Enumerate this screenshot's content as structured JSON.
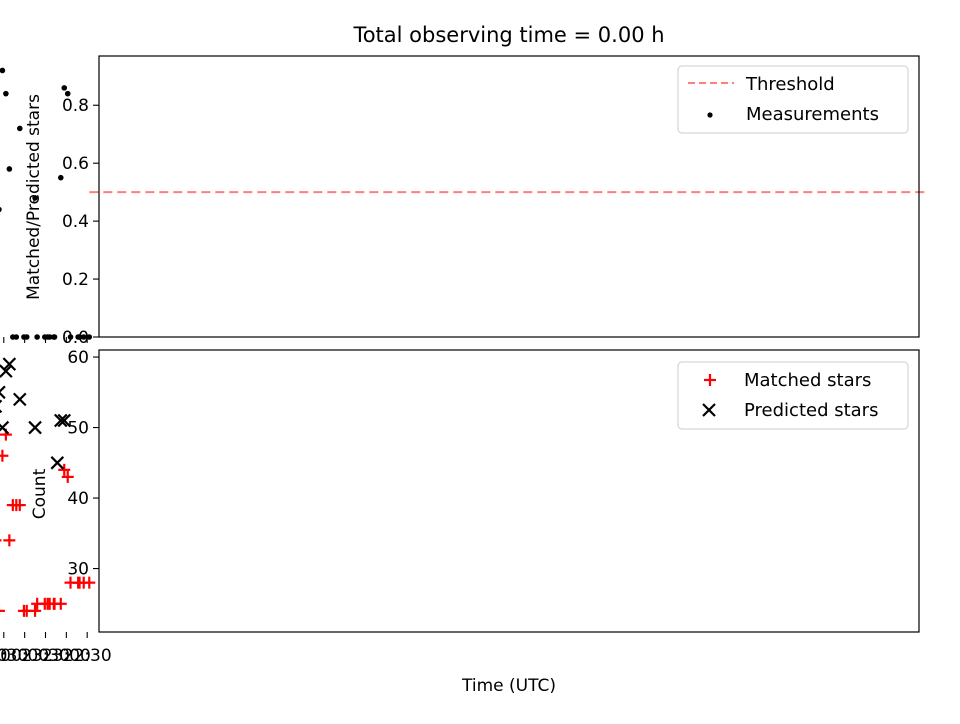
{
  "chart_data": [
    {
      "type": "scatter",
      "title": "Total observing time = 0.00 h",
      "ylabel": "Matched/Predicted stars",
      "ylim": [
        0,
        0.97
      ],
      "xlim": [
        "22:13",
        "02:33"
      ],
      "yticks": [
        0.0,
        0.2,
        0.4,
        0.6,
        0.8
      ],
      "ytick_labels": [
        "0.0",
        "0.2",
        "0.4",
        "0.6",
        "0.8"
      ],
      "legend_position": "upper-right",
      "threshold": {
        "name": "Threshold",
        "y": 0.5,
        "x_range": [
          "22:27",
          "02:21"
        ],
        "color": "#ff7f7f",
        "style": "dashed"
      },
      "series": [
        {
          "name": "Measurements",
          "color": "#000000",
          "marker": "dot",
          "x": [
            "22:27",
            "22:35",
            "22:41",
            "22:43",
            "22:54",
            "22:58",
            "23:03",
            "23:08",
            "23:17",
            "23:18",
            "23:24",
            "23:27",
            "23:31",
            "23:42",
            "23:45",
            "23:57",
            "24:01",
            "24:07",
            "24:12",
            "24:17",
            "24:22",
            "24:27",
            "24:32",
            "24:37",
            "24:42",
            "24:47",
            "24:52",
            "24:57",
            "25:04",
            "25:08",
            "25:21",
            "25:22",
            "25:28",
            "25:32",
            "25:37",
            "25:45",
            "25:47",
            "25:52",
            "25:56",
            "26:02",
            "26:13",
            "26:17",
            "26:22"
          ],
          "y": [
            0,
            0,
            0,
            0,
            0,
            0.84,
            0.86,
            0.55,
            0,
            0,
            0,
            0,
            0,
            0,
            0.48,
            0,
            0,
            0.72,
            0,
            0,
            0.58,
            0.84,
            0.92,
            0.44,
            0.64,
            0.81,
            0.9,
            0,
            0,
            0,
            0,
            0,
            0,
            0.46,
            0,
            0,
            0.56,
            0,
            0,
            0,
            0,
            0,
            0
          ]
        }
      ]
    },
    {
      "type": "scatter",
      "xlabel": "Time (UTC)",
      "ylabel": "Count",
      "ylim": [
        21,
        61
      ],
      "xlim": [
        "22:13",
        "02:33"
      ],
      "yticks": [
        30,
        40,
        50,
        60
      ],
      "ytick_labels": [
        "30",
        "40",
        "50",
        "60"
      ],
      "xticks": [
        "22:30",
        "23:00",
        "23:30",
        "24:00",
        "24:30",
        "25:00",
        "25:30",
        "26:00",
        "26:30"
      ],
      "xtick_labels": [
        "22:30",
        "23:00",
        "23:30",
        "00:00",
        "00:30",
        "01:00",
        "01:30",
        "02:00",
        "02:30"
      ],
      "legend_position": "upper-right",
      "series": [
        {
          "name": "Matched stars",
          "color": "#ff0000",
          "marker": "plus",
          "x": [
            "22:27",
            "22:35",
            "22:41",
            "22:43",
            "22:54",
            "22:58",
            "23:03",
            "23:08",
            "23:17",
            "23:18",
            "23:24",
            "23:27",
            "23:31",
            "23:42",
            "23:45",
            "23:57",
            "24:01",
            "24:07",
            "24:12",
            "24:17",
            "24:22",
            "24:27",
            "24:32",
            "24:37",
            "24:42",
            "24:47",
            "24:52",
            "24:57",
            "25:04",
            "25:08",
            "25:21",
            "25:22",
            "25:28",
            "25:32",
            "25:37",
            "25:45",
            "25:47",
            "25:52",
            "25:56",
            "26:02",
            "26:13",
            "26:17",
            "26:22"
          ],
          "y": [
            28,
            28,
            28,
            28,
            28,
            43,
            44,
            25,
            25,
            25,
            25,
            25,
            25,
            25,
            24,
            24,
            24,
            39,
            39,
            39,
            34,
            49,
            46,
            24,
            34,
            43,
            44,
            44,
            44,
            44,
            44,
            44,
            44,
            23,
            23,
            23,
            31,
            31,
            31,
            31,
            31,
            31,
            31
          ]
        },
        {
          "name": "Predicted stars",
          "color": "#000000",
          "marker": "x",
          "x": [
            "23:03",
            "23:08",
            "23:13",
            "23:45",
            "24:07",
            "24:22",
            "24:27",
            "24:32",
            "24:37",
            "24:42",
            "24:47",
            "24:52",
            "25:32",
            "25:47"
          ],
          "y": [
            51,
            51,
            45,
            50,
            54,
            59,
            58,
            50,
            55,
            53,
            53,
            49,
            50,
            55
          ]
        }
      ]
    }
  ]
}
